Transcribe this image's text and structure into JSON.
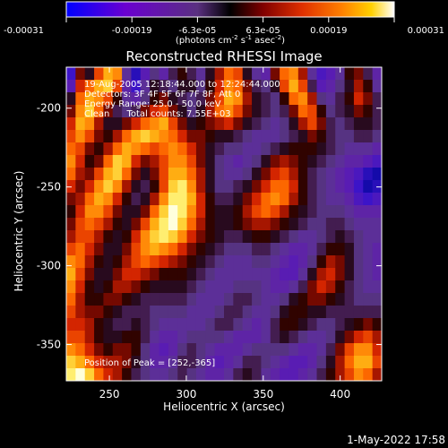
{
  "chart_data": {
    "type": "heatmap",
    "title": "Reconstructed RHESSI Image",
    "xlabel": "Heliocentric X (arcsec)",
    "ylabel": "Heliocentric Y (arcsec)",
    "xlim": [
      222,
      427
    ],
    "ylim": [
      -373,
      -174
    ],
    "x_ticks": [
      250,
      300,
      350,
      400
    ],
    "y_ticks": [
      -350,
      -300,
      -250,
      -200
    ],
    "colorbar": {
      "ticks": [
        "-0.00031",
        "-0.00019",
        "-6.3e-05",
        "6.3e-05",
        "0.00019",
        "0.00031"
      ],
      "unit_label": "(photons cm",
      "unit_exp1": "-2",
      "unit_mid": " s",
      "unit_exp2": "-1",
      "unit_mid2": " asec",
      "unit_exp3": "-2",
      "unit_end": ")",
      "colors": [
        "#0000ff",
        "#6a00d0",
        "#7040a0",
        "#000000",
        "#800000",
        "#e03000",
        "#ff8000",
        "#ffd000",
        "#ffffff"
      ]
    },
    "annotations": [
      "19-Aug-2005 12:18:44.000 to 12:24:44.000",
      "Detectors: 3F 4F 5F 6F 7F 8F, Att 0",
      "Energy Range: 25.0 - 50.0 keV",
      "Clean      Total counts: 7.55E+03",
      "Position of Peak = [252,-365]"
    ],
    "grid_values": [
      [
        0.1,
        0.55,
        0.45,
        0.7,
        0.85,
        0.8,
        0.3,
        0.05,
        0.2,
        0.35,
        0.25,
        0.4,
        0.5,
        0.4,
        0.3,
        0.45,
        0.6,
        0.75,
        0.7,
        0.45,
        0.3,
        0.25,
        0.55,
        0.75,
        0.8,
        0.6,
        0.3,
        0.15,
        0.2,
        0.3,
        0.5,
        0.55,
        0.4,
        0.25
      ],
      [
        0.2,
        0.65,
        0.75,
        0.85,
        0.9,
        0.7,
        0.25,
        0.1,
        0.3,
        0.45,
        0.4,
        0.35,
        0.45,
        0.45,
        0.35,
        0.5,
        0.65,
        0.8,
        0.75,
        0.55,
        0.4,
        0.35,
        0.45,
        0.7,
        0.85,
        0.7,
        0.4,
        0.2,
        0.25,
        0.35,
        0.45,
        0.6,
        0.5,
        0.3
      ],
      [
        0.45,
        0.75,
        0.85,
        0.8,
        0.7,
        0.5,
        0.3,
        0.25,
        0.35,
        0.5,
        0.55,
        0.45,
        0.4,
        0.35,
        0.4,
        0.55,
        0.7,
        0.85,
        0.8,
        0.6,
        0.45,
        0.4,
        0.35,
        0.5,
        0.75,
        0.8,
        0.6,
        0.35,
        0.3,
        0.4,
        0.5,
        0.65,
        0.55,
        0.4
      ],
      [
        0.55,
        0.8,
        0.9,
        0.75,
        0.55,
        0.4,
        0.35,
        0.4,
        0.55,
        0.65,
        0.7,
        0.55,
        0.45,
        0.35,
        0.45,
        0.6,
        0.75,
        0.8,
        0.7,
        0.55,
        0.45,
        0.4,
        0.35,
        0.4,
        0.55,
        0.75,
        0.7,
        0.5,
        0.35,
        0.4,
        0.45,
        0.55,
        0.5,
        0.4
      ],
      [
        0.65,
        0.85,
        0.8,
        0.6,
        0.45,
        0.45,
        0.55,
        0.65,
        0.75,
        0.8,
        0.85,
        0.7,
        0.55,
        0.45,
        0.5,
        0.55,
        0.6,
        0.65,
        0.55,
        0.45,
        0.4,
        0.35,
        0.3,
        0.35,
        0.45,
        0.6,
        0.7,
        0.55,
        0.4,
        0.35,
        0.4,
        0.45,
        0.45,
        0.4
      ],
      [
        0.7,
        0.8,
        0.7,
        0.55,
        0.5,
        0.6,
        0.75,
        0.85,
        0.9,
        0.85,
        0.8,
        0.75,
        0.65,
        0.55,
        0.55,
        0.5,
        0.45,
        0.45,
        0.4,
        0.35,
        0.3,
        0.3,
        0.3,
        0.35,
        0.4,
        0.45,
        0.55,
        0.5,
        0.4,
        0.35,
        0.35,
        0.4,
        0.4,
        0.35
      ],
      [
        0.75,
        0.7,
        0.55,
        0.5,
        0.6,
        0.75,
        0.85,
        0.8,
        0.75,
        0.7,
        0.75,
        0.8,
        0.75,
        0.65,
        0.55,
        0.45,
        0.4,
        0.35,
        0.35,
        0.3,
        0.3,
        0.35,
        0.4,
        0.45,
        0.5,
        0.5,
        0.5,
        0.45,
        0.4,
        0.35,
        0.3,
        0.3,
        0.3,
        0.25
      ],
      [
        0.8,
        0.65,
        0.5,
        0.55,
        0.75,
        0.9,
        0.85,
        0.65,
        0.55,
        0.6,
        0.7,
        0.8,
        0.8,
        0.7,
        0.55,
        0.45,
        0.35,
        0.3,
        0.25,
        0.3,
        0.35,
        0.45,
        0.55,
        0.6,
        0.55,
        0.5,
        0.45,
        0.4,
        0.35,
        0.3,
        0.25,
        0.25,
        0.2,
        0.15
      ],
      [
        0.75,
        0.6,
        0.55,
        0.7,
        0.85,
        0.9,
        0.75,
        0.55,
        0.45,
        0.55,
        0.7,
        0.85,
        0.85,
        0.75,
        0.6,
        0.45,
        0.35,
        0.3,
        0.3,
        0.35,
        0.45,
        0.55,
        0.65,
        0.7,
        0.6,
        0.5,
        0.4,
        0.35,
        0.3,
        0.25,
        0.2,
        0.15,
        0.05,
        0.0
      ],
      [
        0.65,
        0.55,
        0.65,
        0.8,
        0.9,
        0.8,
        0.6,
        0.45,
        0.4,
        0.5,
        0.7,
        0.9,
        0.95,
        0.8,
        0.6,
        0.45,
        0.35,
        0.35,
        0.4,
        0.45,
        0.55,
        0.65,
        0.75,
        0.75,
        0.65,
        0.5,
        0.4,
        0.35,
        0.3,
        0.25,
        0.2,
        0.1,
        0.0,
        0.05
      ],
      [
        0.55,
        0.6,
        0.75,
        0.85,
        0.8,
        0.65,
        0.5,
        0.4,
        0.45,
        0.6,
        0.8,
        0.95,
        0.95,
        0.85,
        0.65,
        0.5,
        0.4,
        0.4,
        0.45,
        0.55,
        0.65,
        0.75,
        0.8,
        0.75,
        0.6,
        0.5,
        0.4,
        0.35,
        0.3,
        0.3,
        0.25,
        0.15,
        0.1,
        0.15
      ],
      [
        0.5,
        0.65,
        0.8,
        0.8,
        0.7,
        0.55,
        0.45,
        0.45,
        0.55,
        0.75,
        0.9,
        1.0,
        0.95,
        0.8,
        0.65,
        0.5,
        0.45,
        0.45,
        0.5,
        0.6,
        0.7,
        0.75,
        0.7,
        0.6,
        0.5,
        0.45,
        0.4,
        0.35,
        0.35,
        0.35,
        0.3,
        0.25,
        0.25,
        0.25
      ],
      [
        0.55,
        0.7,
        0.75,
        0.7,
        0.6,
        0.5,
        0.45,
        0.55,
        0.7,
        0.85,
        0.95,
        1.0,
        0.9,
        0.75,
        0.6,
        0.5,
        0.45,
        0.45,
        0.5,
        0.55,
        0.6,
        0.6,
        0.55,
        0.5,
        0.45,
        0.4,
        0.35,
        0.35,
        0.4,
        0.4,
        0.35,
        0.3,
        0.3,
        0.3
      ],
      [
        0.6,
        0.7,
        0.7,
        0.6,
        0.5,
        0.45,
        0.5,
        0.65,
        0.8,
        0.9,
        0.95,
        0.9,
        0.8,
        0.65,
        0.55,
        0.5,
        0.45,
        0.4,
        0.4,
        0.45,
        0.5,
        0.5,
        0.45,
        0.4,
        0.35,
        0.3,
        0.3,
        0.35,
        0.4,
        0.45,
        0.4,
        0.35,
        0.3,
        0.3
      ],
      [
        0.7,
        0.75,
        0.65,
        0.55,
        0.45,
        0.45,
        0.55,
        0.7,
        0.8,
        0.85,
        0.8,
        0.75,
        0.65,
        0.55,
        0.5,
        0.45,
        0.4,
        0.35,
        0.35,
        0.35,
        0.4,
        0.4,
        0.35,
        0.3,
        0.25,
        0.25,
        0.3,
        0.4,
        0.5,
        0.5,
        0.45,
        0.35,
        0.3,
        0.25
      ],
      [
        0.8,
        0.75,
        0.6,
        0.5,
        0.45,
        0.5,
        0.6,
        0.7,
        0.75,
        0.7,
        0.65,
        0.6,
        0.55,
        0.5,
        0.45,
        0.4,
        0.35,
        0.3,
        0.3,
        0.3,
        0.35,
        0.35,
        0.3,
        0.25,
        0.2,
        0.25,
        0.35,
        0.5,
        0.6,
        0.55,
        0.45,
        0.35,
        0.3,
        0.25
      ],
      [
        0.85,
        0.7,
        0.55,
        0.45,
        0.45,
        0.55,
        0.65,
        0.65,
        0.6,
        0.55,
        0.5,
        0.5,
        0.5,
        0.45,
        0.4,
        0.35,
        0.3,
        0.3,
        0.3,
        0.3,
        0.3,
        0.3,
        0.25,
        0.2,
        0.2,
        0.3,
        0.45,
        0.6,
        0.65,
        0.55,
        0.45,
        0.35,
        0.3,
        0.25
      ],
      [
        0.8,
        0.65,
        0.5,
        0.45,
        0.5,
        0.6,
        0.6,
        0.55,
        0.5,
        0.45,
        0.45,
        0.45,
        0.45,
        0.4,
        0.35,
        0.3,
        0.3,
        0.3,
        0.35,
        0.35,
        0.35,
        0.3,
        0.25,
        0.25,
        0.3,
        0.4,
        0.55,
        0.65,
        0.6,
        0.5,
        0.4,
        0.35,
        0.3,
        0.3
      ],
      [
        0.75,
        0.6,
        0.5,
        0.5,
        0.55,
        0.55,
        0.5,
        0.45,
        0.4,
        0.4,
        0.4,
        0.4,
        0.4,
        0.35,
        0.3,
        0.3,
        0.3,
        0.35,
        0.4,
        0.4,
        0.35,
        0.3,
        0.3,
        0.35,
        0.45,
        0.5,
        0.55,
        0.55,
        0.5,
        0.45,
        0.4,
        0.35,
        0.35,
        0.35
      ],
      [
        0.7,
        0.6,
        0.55,
        0.55,
        0.5,
        0.45,
        0.4,
        0.4,
        0.4,
        0.35,
        0.35,
        0.35,
        0.35,
        0.3,
        0.3,
        0.3,
        0.35,
        0.4,
        0.4,
        0.35,
        0.3,
        0.3,
        0.35,
        0.45,
        0.5,
        0.5,
        0.45,
        0.45,
        0.4,
        0.4,
        0.4,
        0.4,
        0.4,
        0.4
      ],
      [
        0.65,
        0.65,
        0.6,
        0.5,
        0.45,
        0.4,
        0.4,
        0.45,
        0.4,
        0.35,
        0.3,
        0.3,
        0.3,
        0.3,
        0.3,
        0.35,
        0.4,
        0.4,
        0.35,
        0.3,
        0.25,
        0.3,
        0.4,
        0.5,
        0.5,
        0.45,
        0.4,
        0.35,
        0.35,
        0.4,
        0.45,
        0.5,
        0.55,
        0.5
      ],
      [
        0.7,
        0.7,
        0.6,
        0.5,
        0.45,
        0.45,
        0.5,
        0.5,
        0.4,
        0.3,
        0.25,
        0.25,
        0.3,
        0.35,
        0.35,
        0.35,
        0.35,
        0.3,
        0.25,
        0.25,
        0.25,
        0.3,
        0.4,
        0.45,
        0.4,
        0.35,
        0.3,
        0.3,
        0.35,
        0.45,
        0.55,
        0.65,
        0.7,
        0.6
      ],
      [
        0.8,
        0.75,
        0.65,
        0.55,
        0.5,
        0.55,
        0.55,
        0.5,
        0.35,
        0.25,
        0.2,
        0.25,
        0.35,
        0.4,
        0.35,
        0.3,
        0.25,
        0.25,
        0.25,
        0.3,
        0.35,
        0.35,
        0.35,
        0.35,
        0.3,
        0.25,
        0.25,
        0.3,
        0.4,
        0.55,
        0.7,
        0.8,
        0.8,
        0.65
      ],
      [
        0.9,
        0.85,
        0.75,
        0.65,
        0.6,
        0.6,
        0.55,
        0.45,
        0.35,
        0.25,
        0.25,
        0.3,
        0.4,
        0.4,
        0.35,
        0.25,
        0.2,
        0.25,
        0.3,
        0.4,
        0.4,
        0.35,
        0.3,
        0.25,
        0.2,
        0.2,
        0.25,
        0.35,
        0.45,
        0.6,
        0.75,
        0.85,
        0.85,
        0.7
      ],
      [
        0.95,
        1.0,
        0.9,
        0.75,
        0.65,
        0.6,
        0.5,
        0.4,
        0.35,
        0.3,
        0.3,
        0.35,
        0.4,
        0.35,
        0.3,
        0.25,
        0.25,
        0.3,
        0.4,
        0.45,
        0.4,
        0.3,
        0.25,
        0.2,
        0.2,
        0.25,
        0.3,
        0.4,
        0.5,
        0.6,
        0.7,
        0.8,
        0.75,
        0.6
      ]
    ],
    "peak": [
      252,
      -365
    ],
    "footer_date": "1-May-2022 17:58"
  }
}
